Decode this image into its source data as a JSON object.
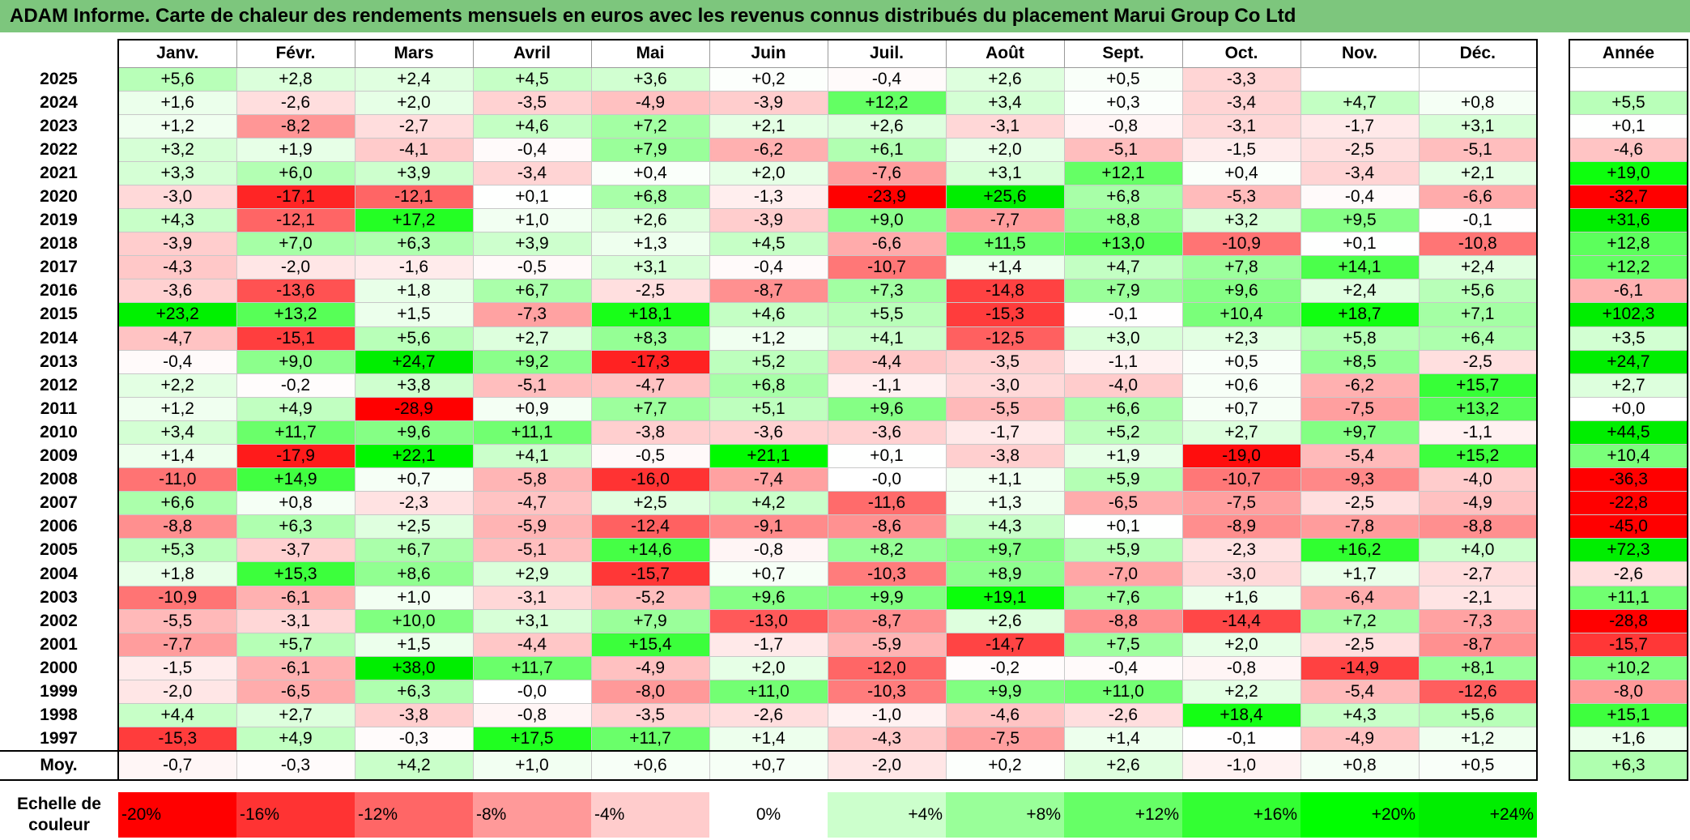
{
  "title": "ADAM Informe. Carte de chaleur des rendements mensuels en euros avec les revenus connus distribués du placement Marui Group Co Ltd",
  "chart_data": {
    "type": "heatmap",
    "columns": [
      "Janv.",
      "Févr.",
      "Mars",
      "Avril",
      "Mai",
      "Juin",
      "Juil.",
      "Août",
      "Sept.",
      "Oct.",
      "Nov.",
      "Déc."
    ],
    "year_column_label": "Année",
    "rows": [
      {
        "year": "2025",
        "values": [
          "+5,6",
          "+2,8",
          "+2,4",
          "+4,5",
          "+3,6",
          "+0,2",
          "-0,4",
          "+2,6",
          "+0,5",
          "-3,3",
          "",
          ""
        ],
        "annual": ""
      },
      {
        "year": "2024",
        "values": [
          "+1,6",
          "-2,6",
          "+2,0",
          "-3,5",
          "-4,9",
          "-3,9",
          "+12,2",
          "+3,4",
          "+0,3",
          "-3,4",
          "+4,7",
          "+0,8"
        ],
        "annual": "+5,5"
      },
      {
        "year": "2023",
        "values": [
          "+1,2",
          "-8,2",
          "-2,7",
          "+4,6",
          "+7,2",
          "+2,1",
          "+2,6",
          "-3,1",
          "-0,8",
          "-3,1",
          "-1,7",
          "+3,1"
        ],
        "annual": "+0,1"
      },
      {
        "year": "2022",
        "values": [
          "+3,2",
          "+1,9",
          "-4,1",
          "-0,4",
          "+7,9",
          "-6,2",
          "+6,1",
          "+2,0",
          "-5,1",
          "-1,5",
          "-2,5",
          "-5,1"
        ],
        "annual": "-4,6"
      },
      {
        "year": "2021",
        "values": [
          "+3,3",
          "+6,0",
          "+3,9",
          "-3,4",
          "+0,4",
          "+2,0",
          "-7,6",
          "+3,1",
          "+12,1",
          "+0,4",
          "-3,4",
          "+2,1"
        ],
        "annual": "+19,0"
      },
      {
        "year": "2020",
        "values": [
          "-3,0",
          "-17,1",
          "-12,1",
          "+0,1",
          "+6,8",
          "-1,3",
          "-23,9",
          "+25,6",
          "+6,8",
          "-5,3",
          "-0,4",
          "-6,6"
        ],
        "annual": "-32,7"
      },
      {
        "year": "2019",
        "values": [
          "+4,3",
          "-12,1",
          "+17,2",
          "+1,0",
          "+2,6",
          "-3,9",
          "+9,0",
          "-7,7",
          "+8,8",
          "+3,2",
          "+9,5",
          "-0,1"
        ],
        "annual": "+31,6"
      },
      {
        "year": "2018",
        "values": [
          "-3,9",
          "+7,0",
          "+6,3",
          "+3,9",
          "+1,3",
          "+4,5",
          "-6,6",
          "+11,5",
          "+13,0",
          "-10,9",
          "+0,1",
          "-10,8"
        ],
        "annual": "+12,8"
      },
      {
        "year": "2017",
        "values": [
          "-4,3",
          "-2,0",
          "-1,6",
          "-0,5",
          "+3,1",
          "-0,4",
          "-10,7",
          "+1,4",
          "+4,7",
          "+7,8",
          "+14,1",
          "+2,4"
        ],
        "annual": "+12,2"
      },
      {
        "year": "2016",
        "values": [
          "-3,6",
          "-13,6",
          "+1,8",
          "+6,7",
          "-2,5",
          "-8,7",
          "+7,3",
          "-14,8",
          "+7,9",
          "+9,6",
          "+2,4",
          "+5,6"
        ],
        "annual": "-6,1"
      },
      {
        "year": "2015",
        "values": [
          "+23,2",
          "+13,2",
          "+1,5",
          "-7,3",
          "+18,1",
          "+4,6",
          "+5,5",
          "-15,3",
          "-0,1",
          "+10,4",
          "+18,7",
          "+7,1"
        ],
        "annual": "+102,3"
      },
      {
        "year": "2014",
        "values": [
          "-4,7",
          "-15,1",
          "+5,6",
          "+2,7",
          "+8,3",
          "+1,2",
          "+4,1",
          "-12,5",
          "+3,0",
          "+2,3",
          "+5,8",
          "+6,4"
        ],
        "annual": "+3,5"
      },
      {
        "year": "2013",
        "values": [
          "-0,4",
          "+9,0",
          "+24,7",
          "+9,2",
          "-17,3",
          "+5,2",
          "-4,4",
          "-3,5",
          "-1,1",
          "+0,5",
          "+8,5",
          "-2,5"
        ],
        "annual": "+24,7"
      },
      {
        "year": "2012",
        "values": [
          "+2,2",
          "-0,2",
          "+3,8",
          "-5,1",
          "-4,7",
          "+6,8",
          "-1,1",
          "-3,0",
          "-4,0",
          "+0,6",
          "-6,2",
          "+15,7"
        ],
        "annual": "+2,7"
      },
      {
        "year": "2011",
        "values": [
          "+1,2",
          "+4,9",
          "-28,9",
          "+0,9",
          "+7,7",
          "+5,1",
          "+9,6",
          "-5,5",
          "+6,6",
          "+0,7",
          "-7,5",
          "+13,2"
        ],
        "annual": "+0,0"
      },
      {
        "year": "2010",
        "values": [
          "+3,4",
          "+11,7",
          "+9,6",
          "+11,1",
          "-3,8",
          "-3,6",
          "-3,6",
          "-1,7",
          "+5,2",
          "+2,7",
          "+9,7",
          "-1,1"
        ],
        "annual": "+44,5"
      },
      {
        "year": "2009",
        "values": [
          "+1,4",
          "-17,9",
          "+22,1",
          "+4,1",
          "-0,5",
          "+21,1",
          "+0,1",
          "-3,8",
          "+1,9",
          "-19,0",
          "-5,4",
          "+15,2"
        ],
        "annual": "+10,4"
      },
      {
        "year": "2008",
        "values": [
          "-11,0",
          "+14,9",
          "+0,7",
          "-5,8",
          "-16,0",
          "-7,4",
          "-0,0",
          "+1,1",
          "+5,9",
          "-10,7",
          "-9,3",
          "-4,0"
        ],
        "annual": "-36,3"
      },
      {
        "year": "2007",
        "values": [
          "+6,6",
          "+0,8",
          "-2,3",
          "-4,7",
          "+2,5",
          "+4,2",
          "-11,6",
          "+1,3",
          "-6,5",
          "-7,5",
          "-2,5",
          "-4,9"
        ],
        "annual": "-22,8"
      },
      {
        "year": "2006",
        "values": [
          "-8,8",
          "+6,3",
          "+2,5",
          "-5,9",
          "-12,4",
          "-9,1",
          "-8,6",
          "+4,3",
          "+0,1",
          "-8,9",
          "-7,8",
          "-8,8"
        ],
        "annual": "-45,0"
      },
      {
        "year": "2005",
        "values": [
          "+5,3",
          "-3,7",
          "+6,7",
          "-5,1",
          "+14,6",
          "-0,8",
          "+8,2",
          "+9,7",
          "+5,9",
          "-2,3",
          "+16,2",
          "+4,0"
        ],
        "annual": "+72,3"
      },
      {
        "year": "2004",
        "values": [
          "+1,8",
          "+15,3",
          "+8,6",
          "+2,9",
          "-15,7",
          "+0,7",
          "-10,3",
          "+8,9",
          "-7,0",
          "-3,0",
          "+1,7",
          "-2,7"
        ],
        "annual": "-2,6"
      },
      {
        "year": "2003",
        "values": [
          "-10,9",
          "-6,1",
          "+1,0",
          "-3,1",
          "-5,2",
          "+9,6",
          "+9,9",
          "+19,1",
          "+7,6",
          "+1,6",
          "-6,4",
          "-2,1"
        ],
        "annual": "+11,1"
      },
      {
        "year": "2002",
        "values": [
          "-5,5",
          "-3,1",
          "+10,0",
          "+3,1",
          "+7,9",
          "-13,0",
          "-8,7",
          "+2,6",
          "-8,8",
          "-14,4",
          "+7,2",
          "-7,3"
        ],
        "annual": "-28,8"
      },
      {
        "year": "2001",
        "values": [
          "-7,7",
          "+5,7",
          "+1,5",
          "-4,4",
          "+15,4",
          "-1,7",
          "-5,9",
          "-14,7",
          "+7,5",
          "+2,0",
          "-2,5",
          "-8,7"
        ],
        "annual": "-15,7"
      },
      {
        "year": "2000",
        "values": [
          "-1,5",
          "-6,1",
          "+38,0",
          "+11,7",
          "-4,9",
          "+2,0",
          "-12,0",
          "-0,2",
          "-0,4",
          "-0,8",
          "-14,9",
          "+8,1"
        ],
        "annual": "+10,2"
      },
      {
        "year": "1999",
        "values": [
          "-2,0",
          "-6,5",
          "+6,3",
          "-0,0",
          "-8,0",
          "+11,0",
          "-10,3",
          "+9,9",
          "+11,0",
          "+2,2",
          "-5,4",
          "-12,6"
        ],
        "annual": "-8,0"
      },
      {
        "year": "1998",
        "values": [
          "+4,4",
          "+2,7",
          "-3,8",
          "-0,8",
          "-3,5",
          "-2,6",
          "-1,0",
          "-4,6",
          "-2,6",
          "+18,4",
          "+4,3",
          "+5,6"
        ],
        "annual": "+15,1"
      },
      {
        "year": "1997",
        "values": [
          "-15,3",
          "+4,9",
          "-0,3",
          "+17,5",
          "+11,7",
          "+1,4",
          "-4,3",
          "-7,5",
          "+1,4",
          "-0,1",
          "-4,9",
          "+1,2"
        ],
        "annual": "+1,6"
      }
    ],
    "average_row": {
      "label": "Moy.",
      "values": [
        "-0,7",
        "-0,3",
        "+4,2",
        "+1,0",
        "+0,6",
        "+0,7",
        "-2,0",
        "+0,2",
        "+2,6",
        "-1,0",
        "+0,8",
        "+0,5"
      ],
      "annual": "+6,3"
    },
    "color_scale": {
      "label": "Echelle de couleur",
      "stops": [
        {
          "label": "-20%",
          "value": -20,
          "color": "#ff0000"
        },
        {
          "label": "-16%",
          "value": -16,
          "color": "#ff3333"
        },
        {
          "label": "-12%",
          "value": -12,
          "color": "#ff6666"
        },
        {
          "label": "-8%",
          "value": -8,
          "color": "#ff9999"
        },
        {
          "label": "-4%",
          "value": -4,
          "color": "#ffcccc"
        },
        {
          "label": "0%",
          "value": 0,
          "color": "#ffffff"
        },
        {
          "label": "+4%",
          "value": 4,
          "color": "#ccffcc"
        },
        {
          "label": "+8%",
          "value": 8,
          "color": "#99ff99"
        },
        {
          "label": "+12%",
          "value": 12,
          "color": "#66ff66"
        },
        {
          "label": "+16%",
          "value": 16,
          "color": "#33ff33"
        },
        {
          "label": "+20%",
          "value": 20,
          "color": "#00ff00"
        },
        {
          "label": "+24%",
          "value": 24,
          "color": "#00ee00"
        }
      ]
    }
  }
}
